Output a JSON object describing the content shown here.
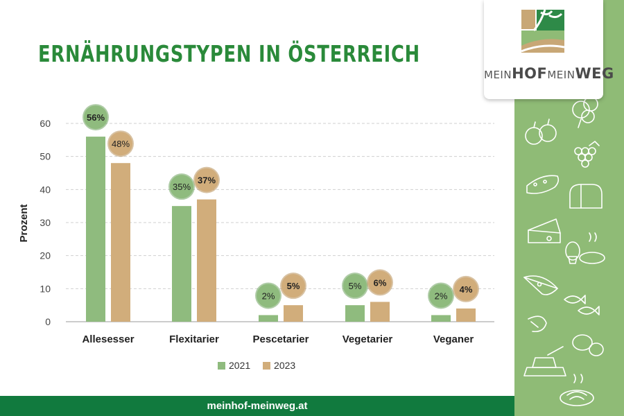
{
  "page_title": "Ernährungstypen in Österreich",
  "logo": {
    "part1": "MEIN",
    "part2": "HOF",
    "part3": "MEIN",
    "part4": "WEG"
  },
  "footer_url": "meinhof-meinweg.at",
  "colors": {
    "series_2021": "#8fbb7e",
    "series_2023": "#d1ad7b",
    "title": "#2a8a3a",
    "footer": "#117a3e",
    "side_panel": "#8fbb76"
  },
  "chart_data": {
    "type": "bar",
    "title": "Ernährungstypen in Österreich",
    "xlabel": "",
    "ylabel": "Prozent",
    "ylim": [
      0,
      60
    ],
    "yticks": [
      0,
      10,
      20,
      30,
      40,
      50,
      60
    ],
    "grid": true,
    "legend_position": "bottom",
    "categories": [
      "Allesesser",
      "Flexitarier",
      "Pescetarier",
      "Vegetarier",
      "Veganer"
    ],
    "series": [
      {
        "name": "2021",
        "values": [
          56,
          35,
          2,
          5,
          2
        ],
        "labels": [
          "56%",
          "35%",
          "2%",
          "5%",
          "2%"
        ],
        "highlight": [
          true,
          false,
          false,
          false,
          false
        ]
      },
      {
        "name": "2023",
        "values": [
          48,
          37,
          5,
          6,
          4
        ],
        "labels": [
          "48%",
          "37%",
          "5%",
          "6%",
          "4%"
        ],
        "highlight": [
          false,
          true,
          true,
          true,
          true
        ]
      }
    ]
  }
}
